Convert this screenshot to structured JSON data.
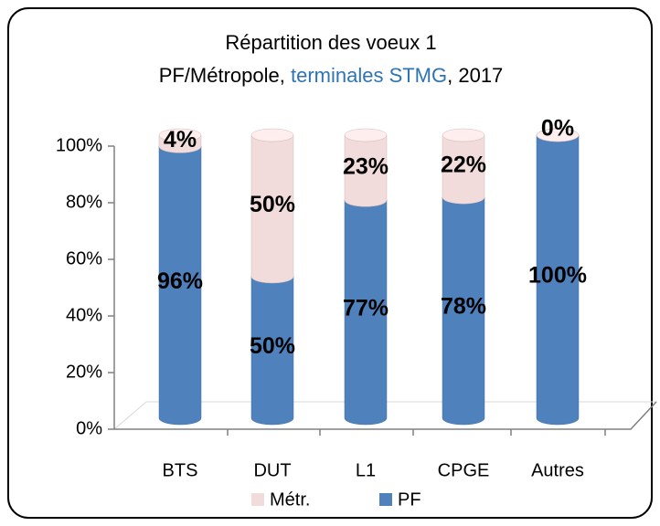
{
  "chart_data": {
    "type": "bar3d_stacked",
    "title": "Répartition des voeux 1",
    "subtitle_parts": [
      {
        "text": "PF/Métropole, ",
        "color": "#000000"
      },
      {
        "text": "terminales STMG",
        "color": "#2e74b5"
      },
      {
        "text": ", 2017",
        "color": "#000000"
      }
    ],
    "categories": [
      "BTS",
      "DUT",
      "L1",
      "CPGE",
      "Autres"
    ],
    "series": [
      {
        "name": "PF",
        "color": "#4f81bd",
        "values": [
          96,
          50,
          77,
          78,
          100
        ],
        "value_labels": [
          "96%",
          "50%",
          "77%",
          "78%",
          "100%"
        ]
      },
      {
        "name": "Métr.",
        "color": "#f2dcdb",
        "values": [
          4,
          50,
          23,
          22,
          0
        ],
        "value_labels": [
          "4%",
          "50%",
          "23%",
          "22%",
          "0%"
        ]
      }
    ],
    "legend_order": [
      1,
      0
    ],
    "ylim": [
      0,
      100
    ],
    "yticks": [
      {
        "value": 0,
        "label": "0%"
      },
      {
        "value": 20,
        "label": "20%"
      },
      {
        "value": 40,
        "label": "40%"
      },
      {
        "value": 60,
        "label": "60%"
      },
      {
        "value": 80,
        "label": "80%"
      },
      {
        "value": 100,
        "label": "100%"
      }
    ]
  }
}
